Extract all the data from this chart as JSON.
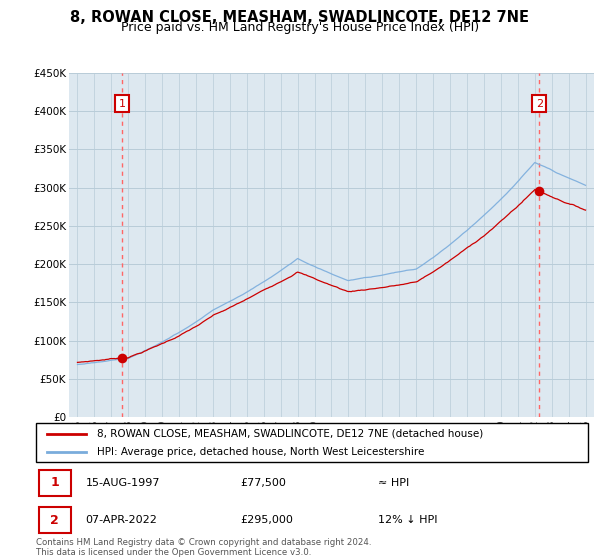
{
  "title": "8, ROWAN CLOSE, MEASHAM, SWADLINCOTE, DE12 7NE",
  "subtitle": "Price paid vs. HM Land Registry's House Price Index (HPI)",
  "ylim": [
    0,
    450000
  ],
  "yticks": [
    0,
    50000,
    100000,
    150000,
    200000,
    250000,
    300000,
    350000,
    400000,
    450000
  ],
  "ytick_labels": [
    "£0",
    "£50K",
    "£100K",
    "£150K",
    "£200K",
    "£250K",
    "£300K",
    "£350K",
    "£400K",
    "£450K"
  ],
  "xlim_start": 1994.5,
  "xlim_end": 2025.5,
  "property_color": "#cc0000",
  "hpi_color": "#7aacdc",
  "chart_bg": "#dde8f0",
  "background_color": "#ffffff",
  "grid_color": "#b8ccd8",
  "sale1_year": 1997.62,
  "sale1_price": 77500,
  "sale2_year": 2022.27,
  "sale2_price": 295000,
  "legend_line1": "8, ROWAN CLOSE, MEASHAM, SWADLINCOTE, DE12 7NE (detached house)",
  "legend_line2": "HPI: Average price, detached house, North West Leicestershire",
  "table_row1": [
    "1",
    "15-AUG-1997",
    "£77,500",
    "≈ HPI"
  ],
  "table_row2": [
    "2",
    "07-APR-2022",
    "£295,000",
    "12% ↓ HPI"
  ],
  "footer": "Contains HM Land Registry data © Crown copyright and database right 2024.\nThis data is licensed under the Open Government Licence v3.0.",
  "title_fontsize": 10.5,
  "subtitle_fontsize": 9
}
